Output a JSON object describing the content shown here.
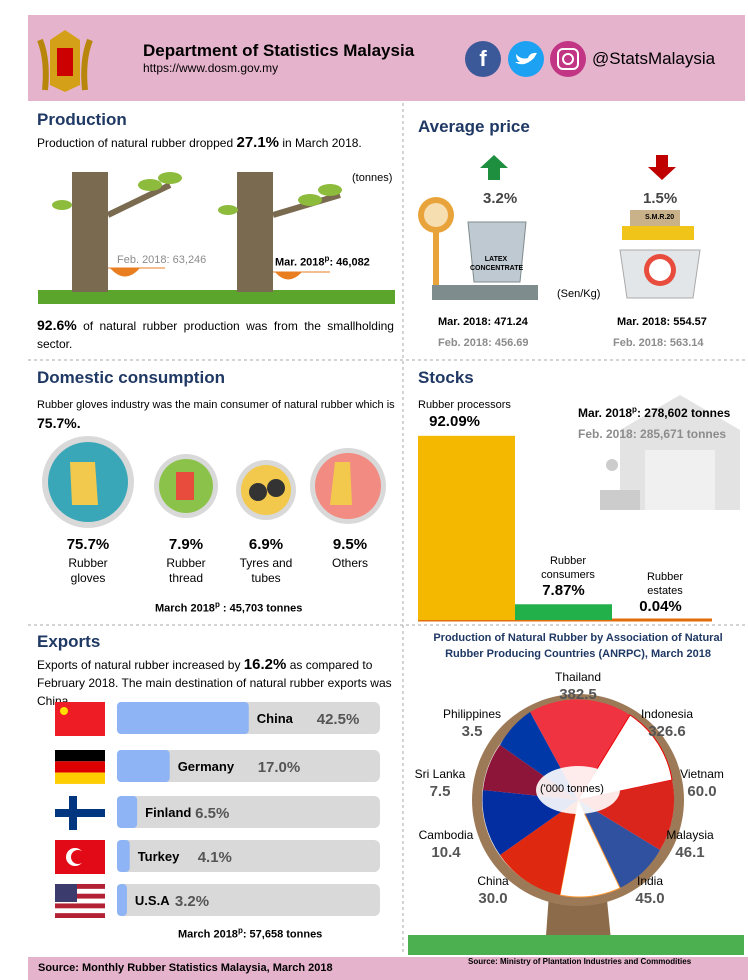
{
  "header": {
    "title": "Department of Statistics Malaysia",
    "url": "https://www.dosm.gov.my",
    "social": "@StatsMalaysia"
  },
  "production": {
    "title": "Production",
    "intro_before": "Production of natural rubber dropped",
    "intro_pct": "27.1%",
    "intro_after": "in March 2018.",
    "unit": "(tonnes)",
    "feb": "Feb. 2018: 63,246",
    "mar_label": "Mar. 2018",
    "mar_sup": "p",
    "mar_value": ": 46,082",
    "smallholding_pct": "92.6%",
    "smallholding_text": "of natural rubber production was from the smallholding sector."
  },
  "average_price": {
    "title": "Average price",
    "unit": "(Sen/Kg)",
    "latex": {
      "change": "3.2%",
      "label": "LATEX CONCENTRATE",
      "mar": "Mar. 2018: 471.24",
      "feb": "Feb. 2018: 456.69"
    },
    "smr": {
      "change": "1.5%",
      "label": "S.M.R.20",
      "mar": "Mar. 2018: 554.57",
      "feb": "Feb. 2018: 563.14"
    }
  },
  "domestic": {
    "title": "Domestic consumption",
    "text": "Rubber gloves industry was the main consumer of natural rubber which is",
    "pct": "75.7%.",
    "items": [
      {
        "pct": "75.7%",
        "label": "Rubber gloves"
      },
      {
        "pct": "7.9%",
        "label": "Rubber thread"
      },
      {
        "pct": "6.9%",
        "label": "Tyres and tubes"
      },
      {
        "pct": "9.5%",
        "label": "Others"
      }
    ],
    "total_label": "March 2018",
    "total_sup": "p",
    "total_value": " : 45,703 tonnes"
  },
  "stocks": {
    "title": "Stocks",
    "mar_label": "Mar. 2018",
    "mar_sup": "p",
    "mar_value": ": 278,602 tonnes",
    "feb": "Feb. 2018:  285,671 tonnes",
    "bars": [
      {
        "name": "Rubber processors",
        "value": 92.09,
        "label": "92.09%"
      },
      {
        "name": "Rubber consumers",
        "value": 7.87,
        "label": "7.87%"
      },
      {
        "name": "Rubber estates",
        "value": 0.04,
        "label": "0.04%"
      }
    ]
  },
  "exports": {
    "title": "Exports",
    "text_before": "Exports of natural rubber increased by",
    "text_pct": "16.2%",
    "text_after": "as compared to February 2018. The main destination of natural rubber exports was China.",
    "countries": [
      {
        "name": "China",
        "value": 42.5,
        "label": "42.5%"
      },
      {
        "name": "Germany",
        "value": 17.0,
        "label": "17.0%"
      },
      {
        "name": "Finland",
        "value": 6.5,
        "label": "6.5%"
      },
      {
        "name": "Turkey",
        "value": 4.1,
        "label": "4.1%"
      },
      {
        "name": "U.S.A",
        "value": 3.2,
        "label": "3.2%"
      }
    ],
    "total_label": "March 2018",
    "total_sup": "p",
    "total_value": ":  57,658 tonnes"
  },
  "anrpc": {
    "title": "Production of Natural Rubber by Association of Natural Rubber Producing Countries (ANRPC),  March 2018",
    "unit": "('000 tonnes)",
    "countries": [
      {
        "name": "Thailand",
        "value": "382.5"
      },
      {
        "name": "Indonesia",
        "value": "326.6"
      },
      {
        "name": "Vietnam",
        "value": "60.0"
      },
      {
        "name": "Malaysia",
        "value": "46.1"
      },
      {
        "name": "India",
        "value": "45.0"
      },
      {
        "name": "China",
        "value": "30.0"
      },
      {
        "name": "Cambodia",
        "value": "10.4"
      },
      {
        "name": "Sri Lanka",
        "value": "7.5"
      },
      {
        "name": "Philippines",
        "value": "3.5"
      }
    ]
  },
  "footer": {
    "source_left": "Source:  Monthly Rubber Statistics Malaysia,  March  2018",
    "source_right": "Source: Ministry of Plantation Industries and Commodities"
  }
}
